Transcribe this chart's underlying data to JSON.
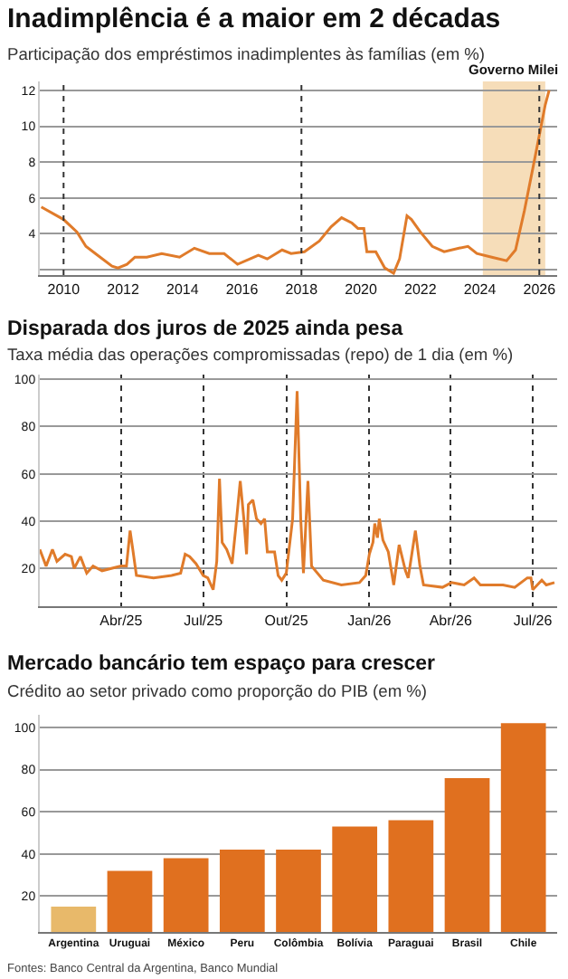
{
  "chart_data": [
    {
      "type": "line",
      "title": "Inadimplência é a maior em 2 décadas",
      "subtitle": "Participação dos empréstimos inadimplentes às famílias (em %)",
      "x": [
        2009.25,
        2010.0,
        2010.45,
        2010.75,
        2011.15,
        2011.63,
        2011.83,
        2012.13,
        2012.4,
        2012.8,
        2013.3,
        2013.9,
        2014.4,
        2014.9,
        2015.4,
        2015.85,
        2016.55,
        2016.85,
        2017.35,
        2017.65,
        2018.1,
        2018.6,
        2019.0,
        2019.35,
        2019.7,
        2019.9,
        2020.1,
        2020.2,
        2020.5,
        2020.8,
        2021.1,
        2021.3,
        2021.55,
        2021.7,
        2022.0,
        2022.4,
        2022.8,
        2023.3,
        2023.6,
        2023.9,
        2024.4,
        2024.9,
        2025.2,
        2025.5,
        2025.8,
        2026.0,
        2026.2,
        2026.33
      ],
      "series": [
        {
          "color": "#e07b2a",
          "values": [
            5.5,
            4.8,
            4.1,
            3.3,
            2.8,
            2.2,
            2.1,
            2.3,
            2.7,
            2.7,
            2.9,
            2.7,
            3.2,
            2.9,
            2.9,
            2.3,
            2.8,
            2.6,
            3.1,
            2.9,
            3.0,
            3.6,
            4.4,
            4.9,
            4.6,
            4.3,
            4.3,
            3.0,
            3.0,
            2.1,
            1.8,
            2.6,
            5.0,
            4.8,
            4.1,
            3.3,
            3.0,
            3.2,
            3.3,
            2.9,
            2.7,
            2.5,
            3.1,
            5.3,
            7.8,
            9.5,
            11.2,
            12.0
          ]
        }
      ],
      "xlim": [
        2009.2,
        2026.6
      ],
      "xticks": [
        2010,
        2012,
        2014,
        2016,
        2018,
        2020,
        2022,
        2024,
        2026
      ],
      "ylim": [
        1.7,
        12.5
      ],
      "yticks": [
        {
          "value": 2,
          "label": null
        },
        4,
        6,
        8,
        10,
        12
      ],
      "grid": "y",
      "line_style": "solid",
      "bands": [
        {
          "axis": "x",
          "from": 2024.1,
          "to": 2026.2,
          "label": "Governo Milei",
          "color": "#f6ddb9"
        }
      ],
      "ref_lines": [
        {
          "axis": "x",
          "value": 2010,
          "line_style": "dotted",
          "color": "#333333"
        },
        {
          "axis": "x",
          "value": 2018,
          "line_style": "dotted",
          "color": "#333333"
        },
        {
          "axis": "x",
          "value": 2026,
          "line_style": "dotted",
          "color": "#333333"
        }
      ]
    },
    {
      "type": "line",
      "title": "Disparada dos juros de 2025 ainda pesa",
      "subtitle": "Taxa média das operações compromissadas (repo) de 1 dia (em %)",
      "x": [
        "2025-01-01",
        "2025-01-08",
        "2025-01-15",
        "2025-01-20",
        "2025-01-29",
        "2025-02-05",
        "2025-02-08",
        "2025-02-15",
        "2025-02-22",
        "2025-03-01",
        "2025-03-11",
        "2025-04-01",
        "2025-04-07",
        "2025-04-11",
        "2025-04-14",
        "2025-04-18",
        "2025-05-07",
        "2025-05-27",
        "2025-06-06",
        "2025-06-11",
        "2025-06-16",
        "2025-06-23",
        "2025-07-01",
        "2025-07-06",
        "2025-07-12",
        "2025-07-16",
        "2025-07-19",
        "2025-07-22",
        "2025-07-27",
        "2025-08-02",
        "2025-08-06",
        "2025-08-11",
        "2025-08-15",
        "2025-08-18",
        "2025-08-20",
        "2025-08-25",
        "2025-08-29",
        "2025-09-03",
        "2025-09-07",
        "2025-09-10",
        "2025-09-18",
        "2025-09-22",
        "2025-09-26",
        "2025-10-01",
        "2025-10-08",
        "2025-10-13",
        "2025-10-17",
        "2025-10-20",
        "2025-10-25",
        "2025-10-29",
        "2025-11-11",
        "2025-12-01",
        "2025-12-21",
        "2025-12-28",
        "2026-01-01",
        "2026-01-05",
        "2026-01-07",
        "2026-01-10",
        "2026-01-12",
        "2026-01-16",
        "2026-01-22",
        "2026-01-28",
        "2026-02-03",
        "2026-02-10",
        "2026-02-13",
        "2026-02-21",
        "2026-02-26",
        "2026-03-02",
        "2026-03-23",
        "2026-04-02",
        "2026-04-16",
        "2026-04-27",
        "2026-05-04",
        "2026-05-29",
        "2026-06-11",
        "2026-06-25",
        "2026-06-29",
        "2026-07-01",
        "2026-07-06",
        "2026-07-11",
        "2026-07-16",
        "2026-07-25"
      ],
      "series": [
        {
          "color": "#e07b2a",
          "values": [
            28,
            21,
            28,
            23,
            26,
            25,
            20,
            25,
            18,
            21,
            19,
            21,
            21,
            36,
            28,
            17,
            16,
            17,
            18,
            26,
            25,
            22,
            17,
            16,
            11,
            23,
            58,
            31,
            28,
            22,
            37,
            57,
            41,
            26,
            47,
            49,
            41,
            39,
            41,
            27,
            27,
            17,
            15,
            18,
            41,
            95,
            41,
            18,
            57,
            21,
            15,
            13,
            14,
            17,
            26,
            31,
            39,
            33,
            41,
            32,
            27,
            13,
            30,
            19,
            16,
            36,
            21,
            13,
            12,
            14,
            13,
            16,
            13,
            13,
            12,
            16,
            16,
            11,
            13,
            15,
            13,
            14
          ]
        }
      ],
      "xlim": [
        "2025-01-01",
        "2026-07-28"
      ],
      "xticks": [
        {
          "value": "2025-04-01",
          "label": "Abr/25"
        },
        {
          "value": "2025-07-01",
          "label": "Jul/25"
        },
        {
          "value": "2025-10-01",
          "label": "Out/25"
        },
        {
          "value": "2026-01-01",
          "label": "Jan/26"
        },
        {
          "value": "2026-04-01",
          "label": "Abr/26"
        },
        {
          "value": "2026-07-01",
          "label": "Jul/26"
        }
      ],
      "ylim": [
        4,
        102
      ],
      "yticks": [
        20,
        40,
        60,
        80,
        100
      ],
      "grid": true,
      "line_style": "solid"
    },
    {
      "type": "bar",
      "title": "Mercado bancário tem espaço para crescer",
      "subtitle": "Crédito ao setor privado como proporção do PIB (em %)",
      "categories": [
        "Argentina",
        "Uruguai",
        "México",
        "Peru",
        "Colômbia",
        "Bolívia",
        "Paraguai",
        "Brasil",
        "Chile"
      ],
      "values": [
        15,
        32,
        38,
        42,
        42,
        53,
        56,
        76,
        102
      ],
      "colors": [
        "#e8b96a",
        "#e0701f",
        "#e0701f",
        "#e0701f",
        "#e0701f",
        "#e0701f",
        "#e0701f",
        "#e0701f",
        "#e0701f"
      ],
      "ylim": [
        3,
        106
      ],
      "yticks": [
        20,
        40,
        60,
        80,
        100
      ],
      "grid": "y",
      "annotations": [
        "Fontes: Banco Central da Argentina, Banco Mundial"
      ]
    }
  ]
}
